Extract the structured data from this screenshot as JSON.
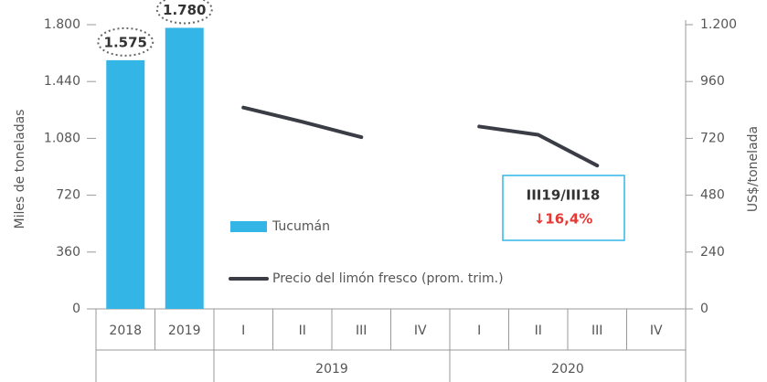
{
  "chart_data": {
    "type": "bar",
    "categories": [
      "2018",
      "2019",
      "I",
      "II",
      "III",
      "IV",
      "I",
      "II",
      "III",
      "IV"
    ],
    "category_groups": [
      null,
      null,
      "2019",
      "2019",
      "2019",
      "2019",
      "2020",
      "2020",
      "2020",
      "2020"
    ],
    "ylabel": "Miles de toneladas",
    "y2label": "US$/tonelada",
    "ylim": [
      0,
      1800
    ],
    "yticks": [
      0,
      360,
      720,
      {
        "value": 1080,
        "label": "1.080"
      },
      {
        "value": 1440,
        "label": "1.440"
      },
      {
        "value": 1800,
        "label": "1.800"
      }
    ],
    "y2lim": [
      0,
      1200
    ],
    "y2ticks": [
      0,
      240,
      480,
      720,
      960,
      {
        "value": 1200,
        "label": "1.200"
      }
    ],
    "grid": false,
    "series": [
      {
        "name": "Tucumán",
        "type": "bar",
        "color": "#33b5e5",
        "values": [
          1575,
          1780,
          null,
          null,
          null,
          null,
          null,
          null,
          null,
          null
        ],
        "value_labels": [
          "1.575",
          "1.780",
          null,
          null,
          null,
          null,
          null,
          null,
          null,
          null
        ]
      },
      {
        "name": "Precio del limón fresco (prom. trim.)",
        "type": "line",
        "axis": "y2",
        "color": "#3a3d45",
        "values": [
          null,
          null,
          850,
          790,
          725,
          null,
          770,
          735,
          605,
          null
        ]
      }
    ],
    "annotation": {
      "title": "III19/III18",
      "text": "↓16,4%",
      "color": "#e53935"
    }
  }
}
